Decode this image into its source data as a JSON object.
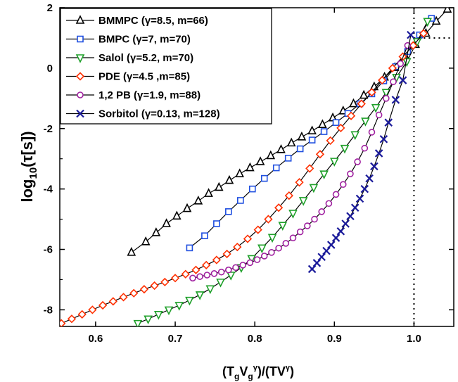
{
  "chart_data": {
    "type": "line",
    "xlabel": "(TgVgγ)/(TVγ)",
    "ylabel": "log10(τ[s])",
    "xlim": [
      0.555,
      1.05
    ],
    "ylim": [
      -8.55,
      2.0
    ],
    "x_ticks": [
      "0.6",
      "0.7",
      "0.8",
      "0.9",
      "1.0"
    ],
    "y_ticks": [
      "2",
      "0",
      "-2",
      "-4",
      "-6",
      "-8"
    ],
    "reference_lines": {
      "x": 1.0,
      "y": 1.0,
      "style": "dotted"
    },
    "legend_position": "top-left",
    "series": [
      {
        "name": "BMMPC (γ=8.5, m=66)",
        "marker": "triangle-up-open",
        "color": "#000000",
        "x": [
          0.645,
          0.663,
          0.676,
          0.689,
          0.702,
          0.715,
          0.729,
          0.742,
          0.755,
          0.768,
          0.781,
          0.794,
          0.807,
          0.82,
          0.833,
          0.846,
          0.859,
          0.872,
          0.885,
          0.898,
          0.911,
          0.924,
          0.937,
          0.95,
          0.963,
          0.976,
          0.989,
          1.002,
          1.015,
          1.028,
          1.042
        ],
        "y": [
          -6.1,
          -5.75,
          -5.45,
          -5.15,
          -4.9,
          -4.65,
          -4.4,
          -4.15,
          -3.95,
          -3.72,
          -3.5,
          -3.3,
          -3.1,
          -2.9,
          -2.7,
          -2.48,
          -2.28,
          -2.08,
          -1.87,
          -1.65,
          -1.42,
          -1.18,
          -0.9,
          -0.62,
          -0.3,
          0.02,
          0.4,
          0.78,
          1.15,
          1.55,
          1.95
        ]
      },
      {
        "name": "BMPC (γ=7, m=70)",
        "marker": "square-open",
        "color": "#1f4fe0",
        "x": [
          0.718,
          0.737,
          0.752,
          0.767,
          0.782,
          0.797,
          0.812,
          0.827,
          0.842,
          0.857,
          0.872,
          0.887,
          0.902,
          0.917,
          0.932,
          0.947,
          0.962,
          0.977,
          0.992,
          1.007,
          1.022
        ],
        "y": [
          -5.95,
          -5.55,
          -5.15,
          -4.75,
          -4.38,
          -4.0,
          -3.65,
          -3.3,
          -2.98,
          -2.67,
          -2.38,
          -2.1,
          -1.8,
          -1.5,
          -1.18,
          -0.85,
          -0.42,
          0.05,
          0.55,
          1.1,
          1.65
        ]
      },
      {
        "name": "Salol  (γ=5.2, m=70)",
        "marker": "triangle-down-open",
        "color": "#1fa02a",
        "x": [
          0.653,
          0.666,
          0.679,
          0.692,
          0.705,
          0.718,
          0.731,
          0.744,
          0.757,
          0.77,
          0.783,
          0.796,
          0.809,
          0.822,
          0.835,
          0.848,
          0.861,
          0.874,
          0.887,
          0.9,
          0.913,
          0.926,
          0.939,
          0.952,
          0.965,
          0.978,
          0.991,
          1.004,
          1.017
        ],
        "y": [
          -8.45,
          -8.3,
          -8.15,
          -8.0,
          -7.85,
          -7.68,
          -7.5,
          -7.3,
          -7.08,
          -6.85,
          -6.6,
          -6.3,
          -5.95,
          -5.6,
          -5.2,
          -4.8,
          -4.38,
          -3.95,
          -3.5,
          -3.08,
          -2.65,
          -2.2,
          -1.75,
          -1.3,
          -0.8,
          -0.3,
          0.22,
          0.88,
          1.55
        ]
      },
      {
        "name": "PDE (γ=4.5 ,m=85)",
        "marker": "diamond-open",
        "color": "#ff3000",
        "x": [
          0.557,
          0.57,
          0.583,
          0.596,
          0.609,
          0.622,
          0.635,
          0.648,
          0.661,
          0.674,
          0.687,
          0.7,
          0.713,
          0.726,
          0.739,
          0.752,
          0.765,
          0.778,
          0.791,
          0.804,
          0.817,
          0.83,
          0.843,
          0.856,
          0.869,
          0.882,
          0.895,
          0.908,
          0.921,
          0.934,
          0.947,
          0.96,
          0.973,
          0.986,
          0.999,
          1.012
        ],
        "y": [
          -8.45,
          -8.3,
          -8.15,
          -8.0,
          -7.85,
          -7.72,
          -7.58,
          -7.45,
          -7.32,
          -7.2,
          -7.08,
          -6.95,
          -6.82,
          -6.68,
          -6.52,
          -6.35,
          -6.15,
          -5.92,
          -5.65,
          -5.35,
          -5.0,
          -4.62,
          -4.22,
          -3.78,
          -3.32,
          -2.85,
          -2.4,
          -1.98,
          -1.58,
          -1.18,
          -0.8,
          -0.4,
          0.0,
          0.38,
          0.75,
          1.15
        ]
      },
      {
        "name": "1,2 PB (γ=1.9, m=88)",
        "marker": "circle-open",
        "color": "#a020a0",
        "x": [
          0.722,
          0.731,
          0.74,
          0.749,
          0.758,
          0.767,
          0.776,
          0.785,
          0.794,
          0.803,
          0.812,
          0.821,
          0.83,
          0.839,
          0.848,
          0.857,
          0.866,
          0.875,
          0.884,
          0.893,
          0.902,
          0.911,
          0.92,
          0.929,
          0.938,
          0.947,
          0.956,
          0.965,
          0.974,
          0.983,
          0.992
        ],
        "y": [
          -6.95,
          -6.9,
          -6.85,
          -6.8,
          -6.75,
          -6.68,
          -6.6,
          -6.52,
          -6.44,
          -6.34,
          -6.22,
          -6.1,
          -5.96,
          -5.8,
          -5.62,
          -5.42,
          -5.22,
          -5.0,
          -4.75,
          -4.48,
          -4.18,
          -3.85,
          -3.5,
          -3.1,
          -2.65,
          -2.12,
          -1.55,
          -1.0,
          -0.45,
          0.15,
          0.75
        ]
      },
      {
        "name": "Sorbitol  (γ=0.13, m=128)",
        "marker": "x",
        "color": "#1a1a9a",
        "x": [
          0.872,
          0.878,
          0.884,
          0.89,
          0.896,
          0.902,
          0.908,
          0.914,
          0.92,
          0.926,
          0.932,
          0.938,
          0.944,
          0.95,
          0.956,
          0.962,
          0.968,
          0.977,
          0.986,
          0.996
        ],
        "y": [
          -6.65,
          -6.45,
          -6.25,
          -6.05,
          -5.85,
          -5.62,
          -5.4,
          -5.15,
          -4.9,
          -4.62,
          -4.32,
          -4.0,
          -3.65,
          -3.25,
          -2.82,
          -2.35,
          -1.8,
          -1.05,
          -0.4,
          1.1
        ]
      }
    ]
  }
}
